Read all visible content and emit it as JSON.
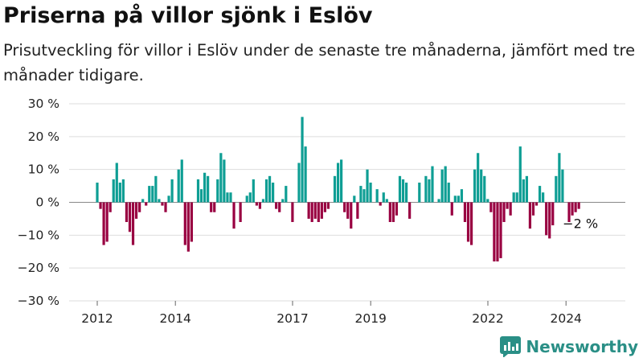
{
  "title": "Priserna på villor sjönk i Eslöv",
  "subtitle": "Prisutveckling för villor i Eslöv under de senaste tre månaderna, jämfört med tre månader tidigare.",
  "brand": "Newsworthy",
  "colors": {
    "positive": "#0e9e94",
    "negative": "#990041",
    "grid": "#dddddd",
    "brand": "#2a8f86"
  },
  "chart_data": {
    "type": "bar",
    "unit": "%",
    "ylim": [
      -30,
      30
    ],
    "yticks": [
      30,
      20,
      10,
      0,
      -10,
      -20,
      -30
    ],
    "ytick_labels": [
      "30 %",
      "20 %",
      "10 %",
      "0 %",
      "−10 %",
      "−20 %",
      "−30 %"
    ],
    "xticks": [
      {
        "label": "2012",
        "x": 2012.0
      },
      {
        "label": "2014",
        "x": 2014.0
      },
      {
        "label": "2017",
        "x": 2017.0
      },
      {
        "label": "2019",
        "x": 2019.0
      },
      {
        "label": "2022",
        "x": 2022.0
      },
      {
        "label": "2024",
        "x": 2024.0
      }
    ],
    "last_value_label": "−2 %",
    "grid": true,
    "x_start": 2012.0,
    "x_step": 0.0833,
    "values": [
      6,
      -2,
      -13,
      -12,
      -3,
      7,
      12,
      6,
      7,
      -6,
      -9,
      -13,
      -5,
      -3,
      1,
      -1,
      5,
      5,
      8,
      1,
      -1,
      -3,
      2,
      7,
      0,
      10,
      13,
      -13,
      -15,
      -12,
      0,
      7,
      4,
      9,
      8,
      -3,
      -3,
      7,
      15,
      13,
      3,
      3,
      -8,
      0,
      -6,
      0,
      2,
      3,
      7,
      -1,
      -2,
      1,
      7,
      8,
      6,
      -2,
      -3,
      1,
      5,
      0,
      -6,
      0,
      12,
      26,
      17,
      -5,
      -6,
      -5,
      -6,
      -5,
      -3,
      -2,
      0,
      8,
      12,
      13,
      -3,
      -5,
      -8,
      2,
      -5,
      5,
      4,
      10,
      6,
      0,
      4,
      -1,
      3,
      1,
      -6,
      -6,
      -4,
      8,
      7,
      6,
      -5,
      0,
      0,
      6,
      0,
      8,
      7,
      11,
      0,
      1,
      10,
      11,
      6,
      -4,
      2,
      2,
      4,
      -6,
      -12,
      -13,
      10,
      15,
      10,
      8,
      1,
      -3,
      -18,
      -18,
      -17,
      -6,
      -2,
      -4,
      3,
      3,
      17,
      7,
      8,
      -8,
      -4,
      -1,
      5,
      3,
      -10,
      -11,
      -7,
      8,
      15,
      10,
      0,
      -6,
      -4,
      -3,
      -2
    ]
  }
}
